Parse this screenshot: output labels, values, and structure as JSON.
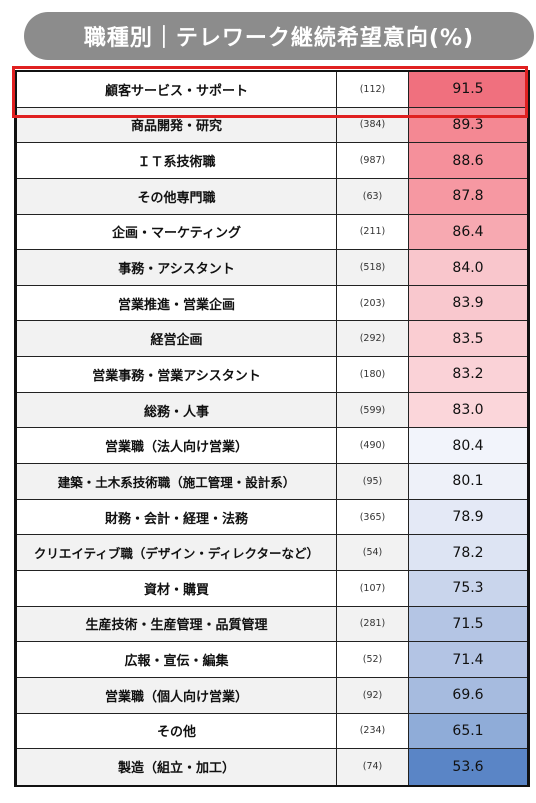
{
  "chart_data": {
    "type": "table",
    "title": "職種別｜テレワーク継続希望意向(%)",
    "rows": [
      {
        "label": "顧客サービス・サポート",
        "n": "(112)",
        "value": 91.5,
        "color": "#f0707e"
      },
      {
        "label": "商品開発・研究",
        "n": "(384)",
        "value": 89.3,
        "color": "#f48893"
      },
      {
        "label": "ＩＴ系技術職",
        "n": "(987)",
        "value": 88.6,
        "color": "#f5909b"
      },
      {
        "label": "その他専門職",
        "n": "(63)",
        "value": 87.8,
        "color": "#f698a2"
      },
      {
        "label": "企画・マーケティング",
        "n": "(211)",
        "value": 86.4,
        "color": "#f7a9b1"
      },
      {
        "label": "事務・アシスタント",
        "n": "(518)",
        "value": 84.0,
        "color": "#f9c6cc"
      },
      {
        "label": "営業推進・営業企画",
        "n": "(203)",
        "value": 83.9,
        "color": "#f9c8ce"
      },
      {
        "label": "経営企画",
        "n": "(292)",
        "value": 83.5,
        "color": "#facdd2"
      },
      {
        "label": "営業事務・営業アシスタント",
        "n": "(180)",
        "value": 83.2,
        "color": "#fad2d7"
      },
      {
        "label": "総務・人事",
        "n": "(599)",
        "value": 83.0,
        "color": "#fbd6da"
      },
      {
        "label": "営業職（法人向け営業）",
        "n": "(490)",
        "value": 80.4,
        "color": "#f2f4fb"
      },
      {
        "label": "建築・土木系技術職（施工管理・設計系）",
        "n": "(95)",
        "value": 80.1,
        "color": "#eef1f9"
      },
      {
        "label": "財務・会計・経理・法務",
        "n": "(365)",
        "value": 78.9,
        "color": "#e4e9f6"
      },
      {
        "label": "クリエイティブ職（デザイン・ディレクターなど）",
        "n": "(54)",
        "value": 78.2,
        "color": "#dde4f3"
      },
      {
        "label": "資材・購買",
        "n": "(107)",
        "value": 75.3,
        "color": "#c9d5ec"
      },
      {
        "label": "生産技術・生産管理・品質管理",
        "n": "(281)",
        "value": 71.5,
        "color": "#b4c5e4"
      },
      {
        "label": "広報・宣伝・編集",
        "n": "(52)",
        "value": 71.4,
        "color": "#b3c4e4"
      },
      {
        "label": "営業職（個人向け営業）",
        "n": "(92)",
        "value": 69.6,
        "color": "#a6bbdf"
      },
      {
        "label": "その他",
        "n": "(234)",
        "value": 65.1,
        "color": "#8facd8"
      },
      {
        "label": "製造（組立・加工）",
        "n": "(74)",
        "value": 53.6,
        "color": "#5a85c6"
      }
    ],
    "highlight_row": 0,
    "highlight_color": "#e02020"
  }
}
